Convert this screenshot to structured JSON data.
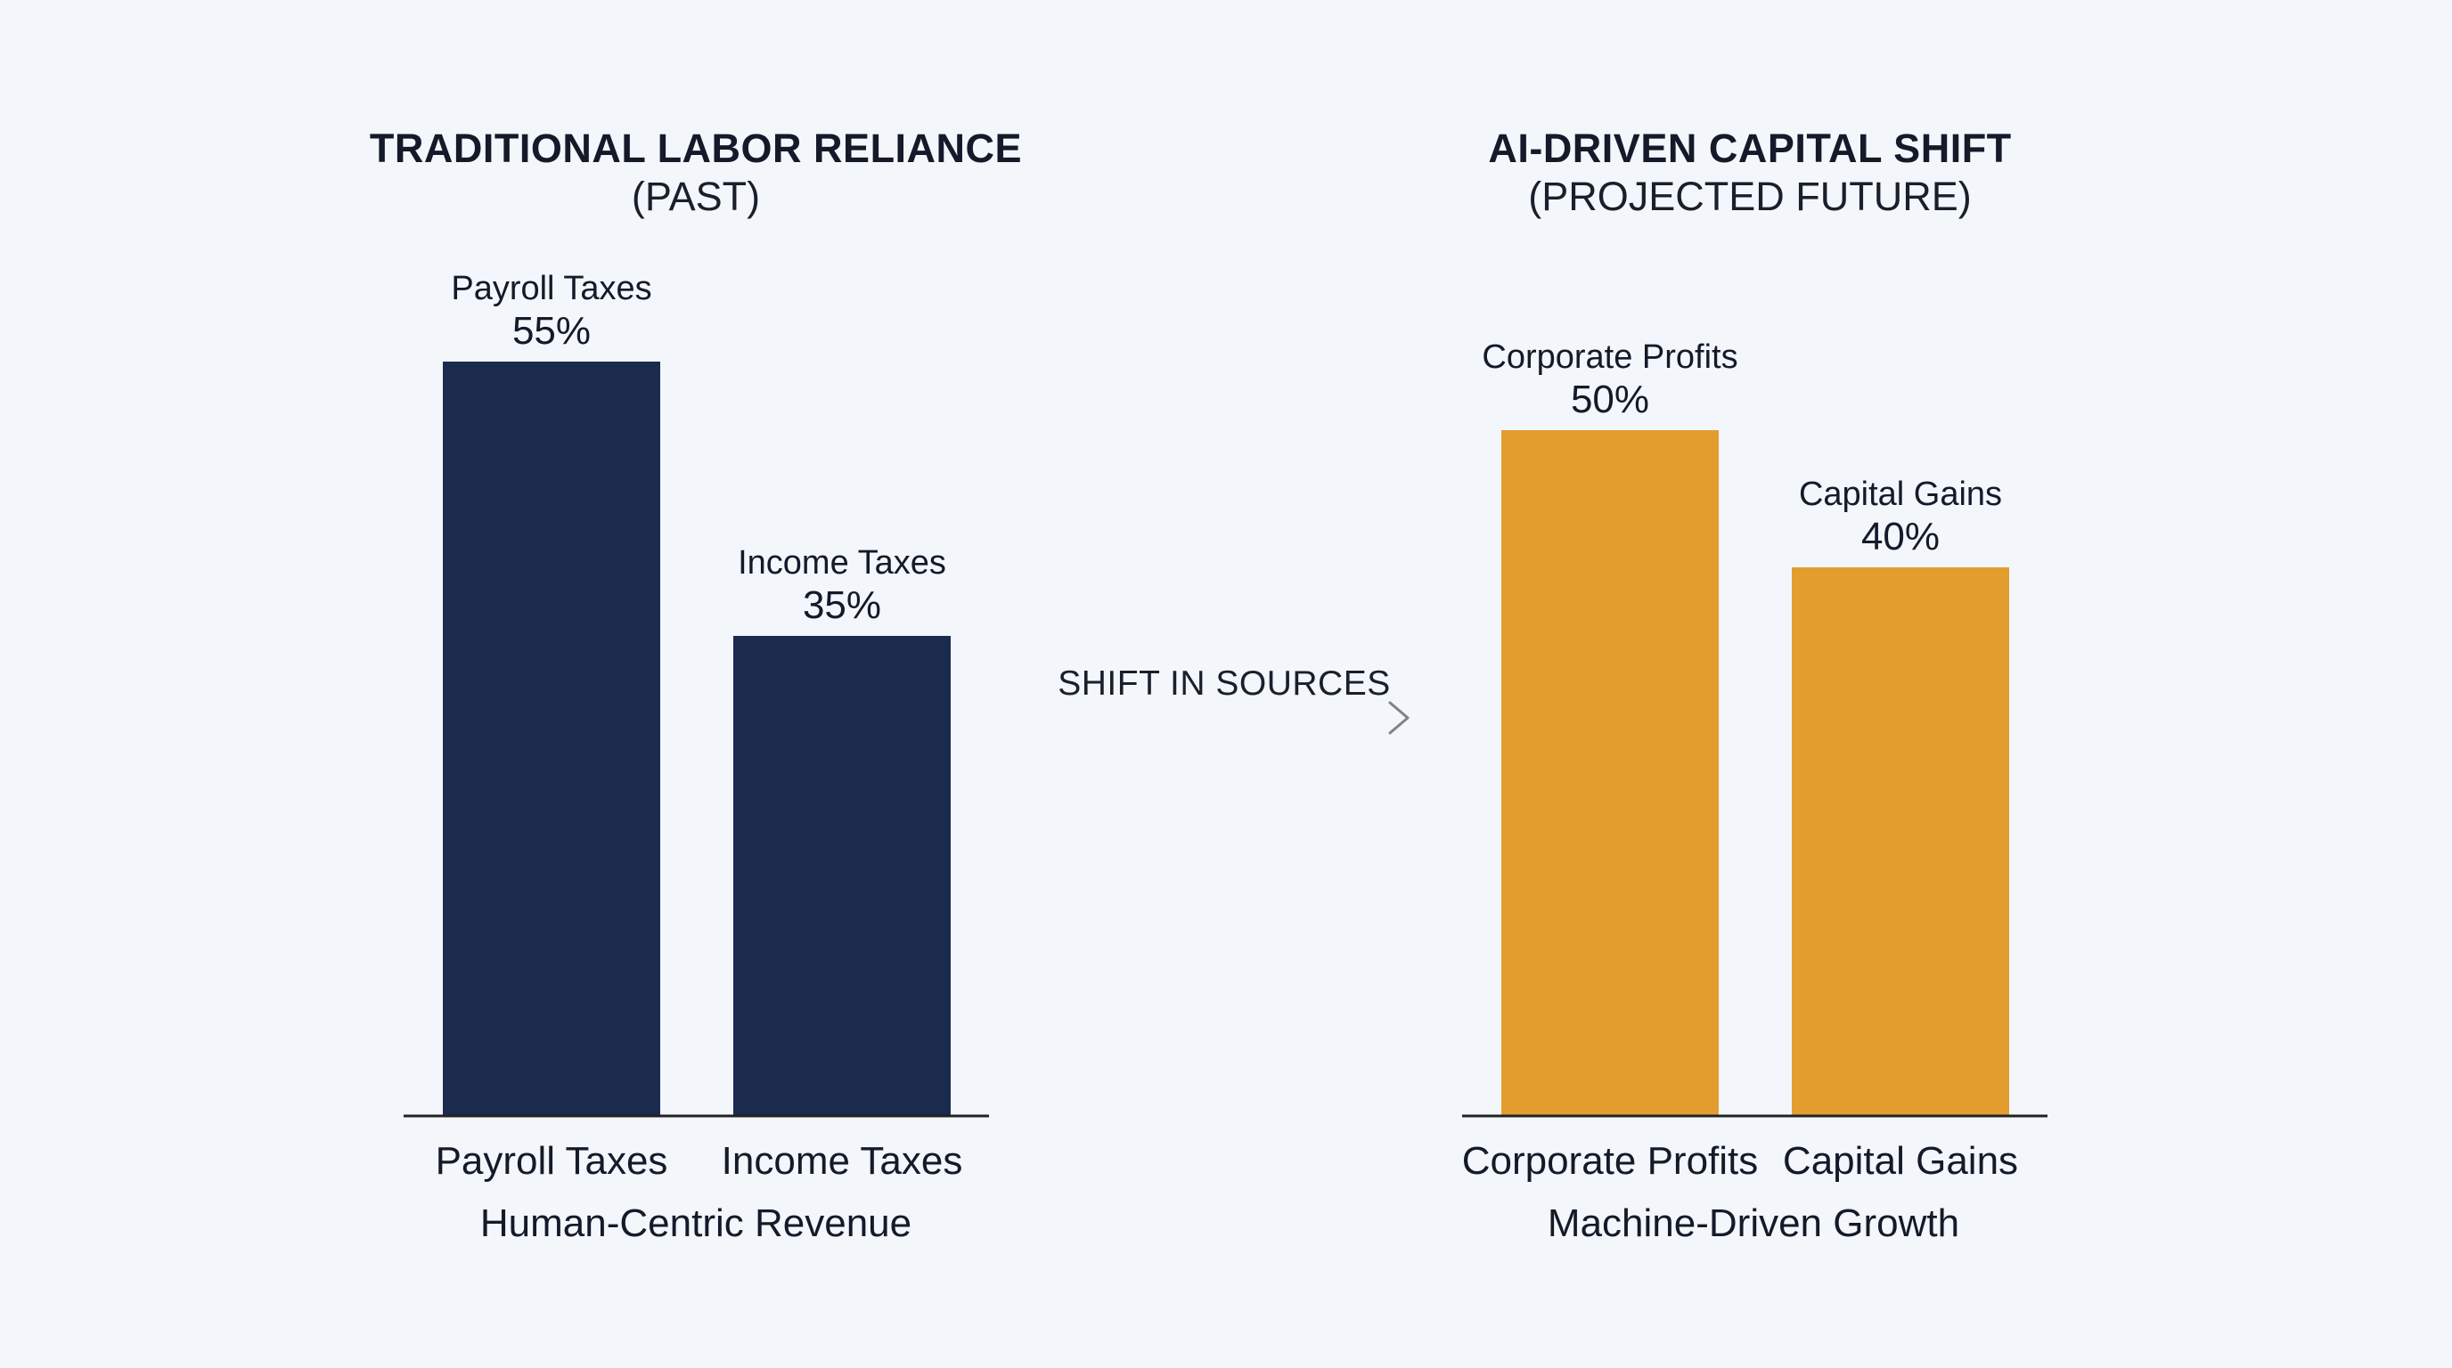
{
  "shift_label": "SHIFT IN SOURCES",
  "colors": {
    "background": "#f3f6fa",
    "past_bar": "#1b2b4e",
    "future_bar": "#e39d2f",
    "axis": "#222222",
    "arrow": "#8a8f99"
  },
  "chart_data": [
    {
      "type": "bar",
      "title": "TRADITIONAL LABOR RELIANCE",
      "subtitle": "(PAST)",
      "xlabel": "Human-Centric Revenue",
      "ylabel": "",
      "categories": [
        "Payroll Taxes",
        "Income Taxes"
      ],
      "values": [
        55,
        35
      ],
      "value_labels": [
        "55%",
        "35%"
      ],
      "ylim": [
        0,
        55
      ],
      "grid": false,
      "color": "#1b2b4e"
    },
    {
      "type": "bar",
      "title": "AI-DRIVEN CAPITAL SHIFT",
      "subtitle": "(PROJECTED FUTURE)",
      "xlabel": "Machine-Driven Growth",
      "ylabel": "",
      "categories": [
        "Corporate Profits",
        "Capital Gains"
      ],
      "values": [
        50,
        40
      ],
      "value_labels": [
        "50%",
        "40%"
      ],
      "ylim": [
        0,
        55
      ],
      "grid": false,
      "color": "#e39d2f"
    }
  ]
}
